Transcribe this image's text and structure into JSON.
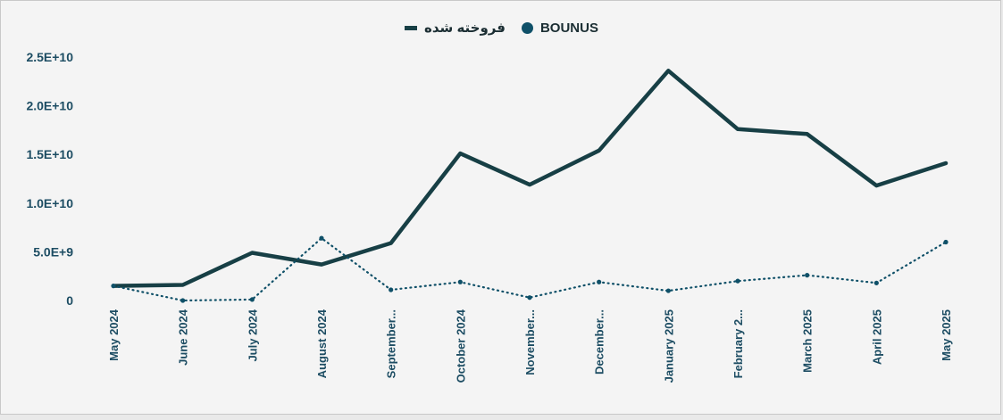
{
  "chart_data": {
    "type": "line",
    "title": "",
    "xlabel": "",
    "ylabel": "",
    "ylim": [
      0,
      25000000000
    ],
    "legend_position": "top-center",
    "grid": false,
    "categories": [
      "May 2024",
      "June 2024",
      "July 2024",
      "August 2024",
      "September...",
      "October 2024",
      "November...",
      "December...",
      "January 2025",
      "February 2...",
      "March 2025",
      "April 2025",
      "May 2025"
    ],
    "y_ticks": [
      {
        "value": 0,
        "label": "0"
      },
      {
        "value": 5000000000,
        "label": "5.0E+9"
      },
      {
        "value": 10000000000,
        "label": "1.0E+10"
      },
      {
        "value": 15000000000,
        "label": "1.5E+10"
      },
      {
        "value": 20000000000,
        "label": "2.0E+10"
      },
      {
        "value": 25000000000,
        "label": "2.5E+10"
      }
    ],
    "series": [
      {
        "name": "فروخته شده",
        "style": "solid",
        "color": "#173f45",
        "values": [
          1500000000,
          1600000000,
          4900000000,
          3700000000,
          5900000000,
          15100000000,
          11900000000,
          15400000000,
          23600000000,
          17600000000,
          17100000000,
          11800000000,
          14100000000
        ]
      },
      {
        "name": "BOUNUS",
        "style": "dotted",
        "color": "#0f5068",
        "values": [
          1500000000,
          0,
          100000000,
          6400000000,
          1100000000,
          1900000000,
          300000000,
          1900000000,
          1000000000,
          2000000000,
          2600000000,
          1800000000,
          6000000000
        ]
      }
    ]
  }
}
